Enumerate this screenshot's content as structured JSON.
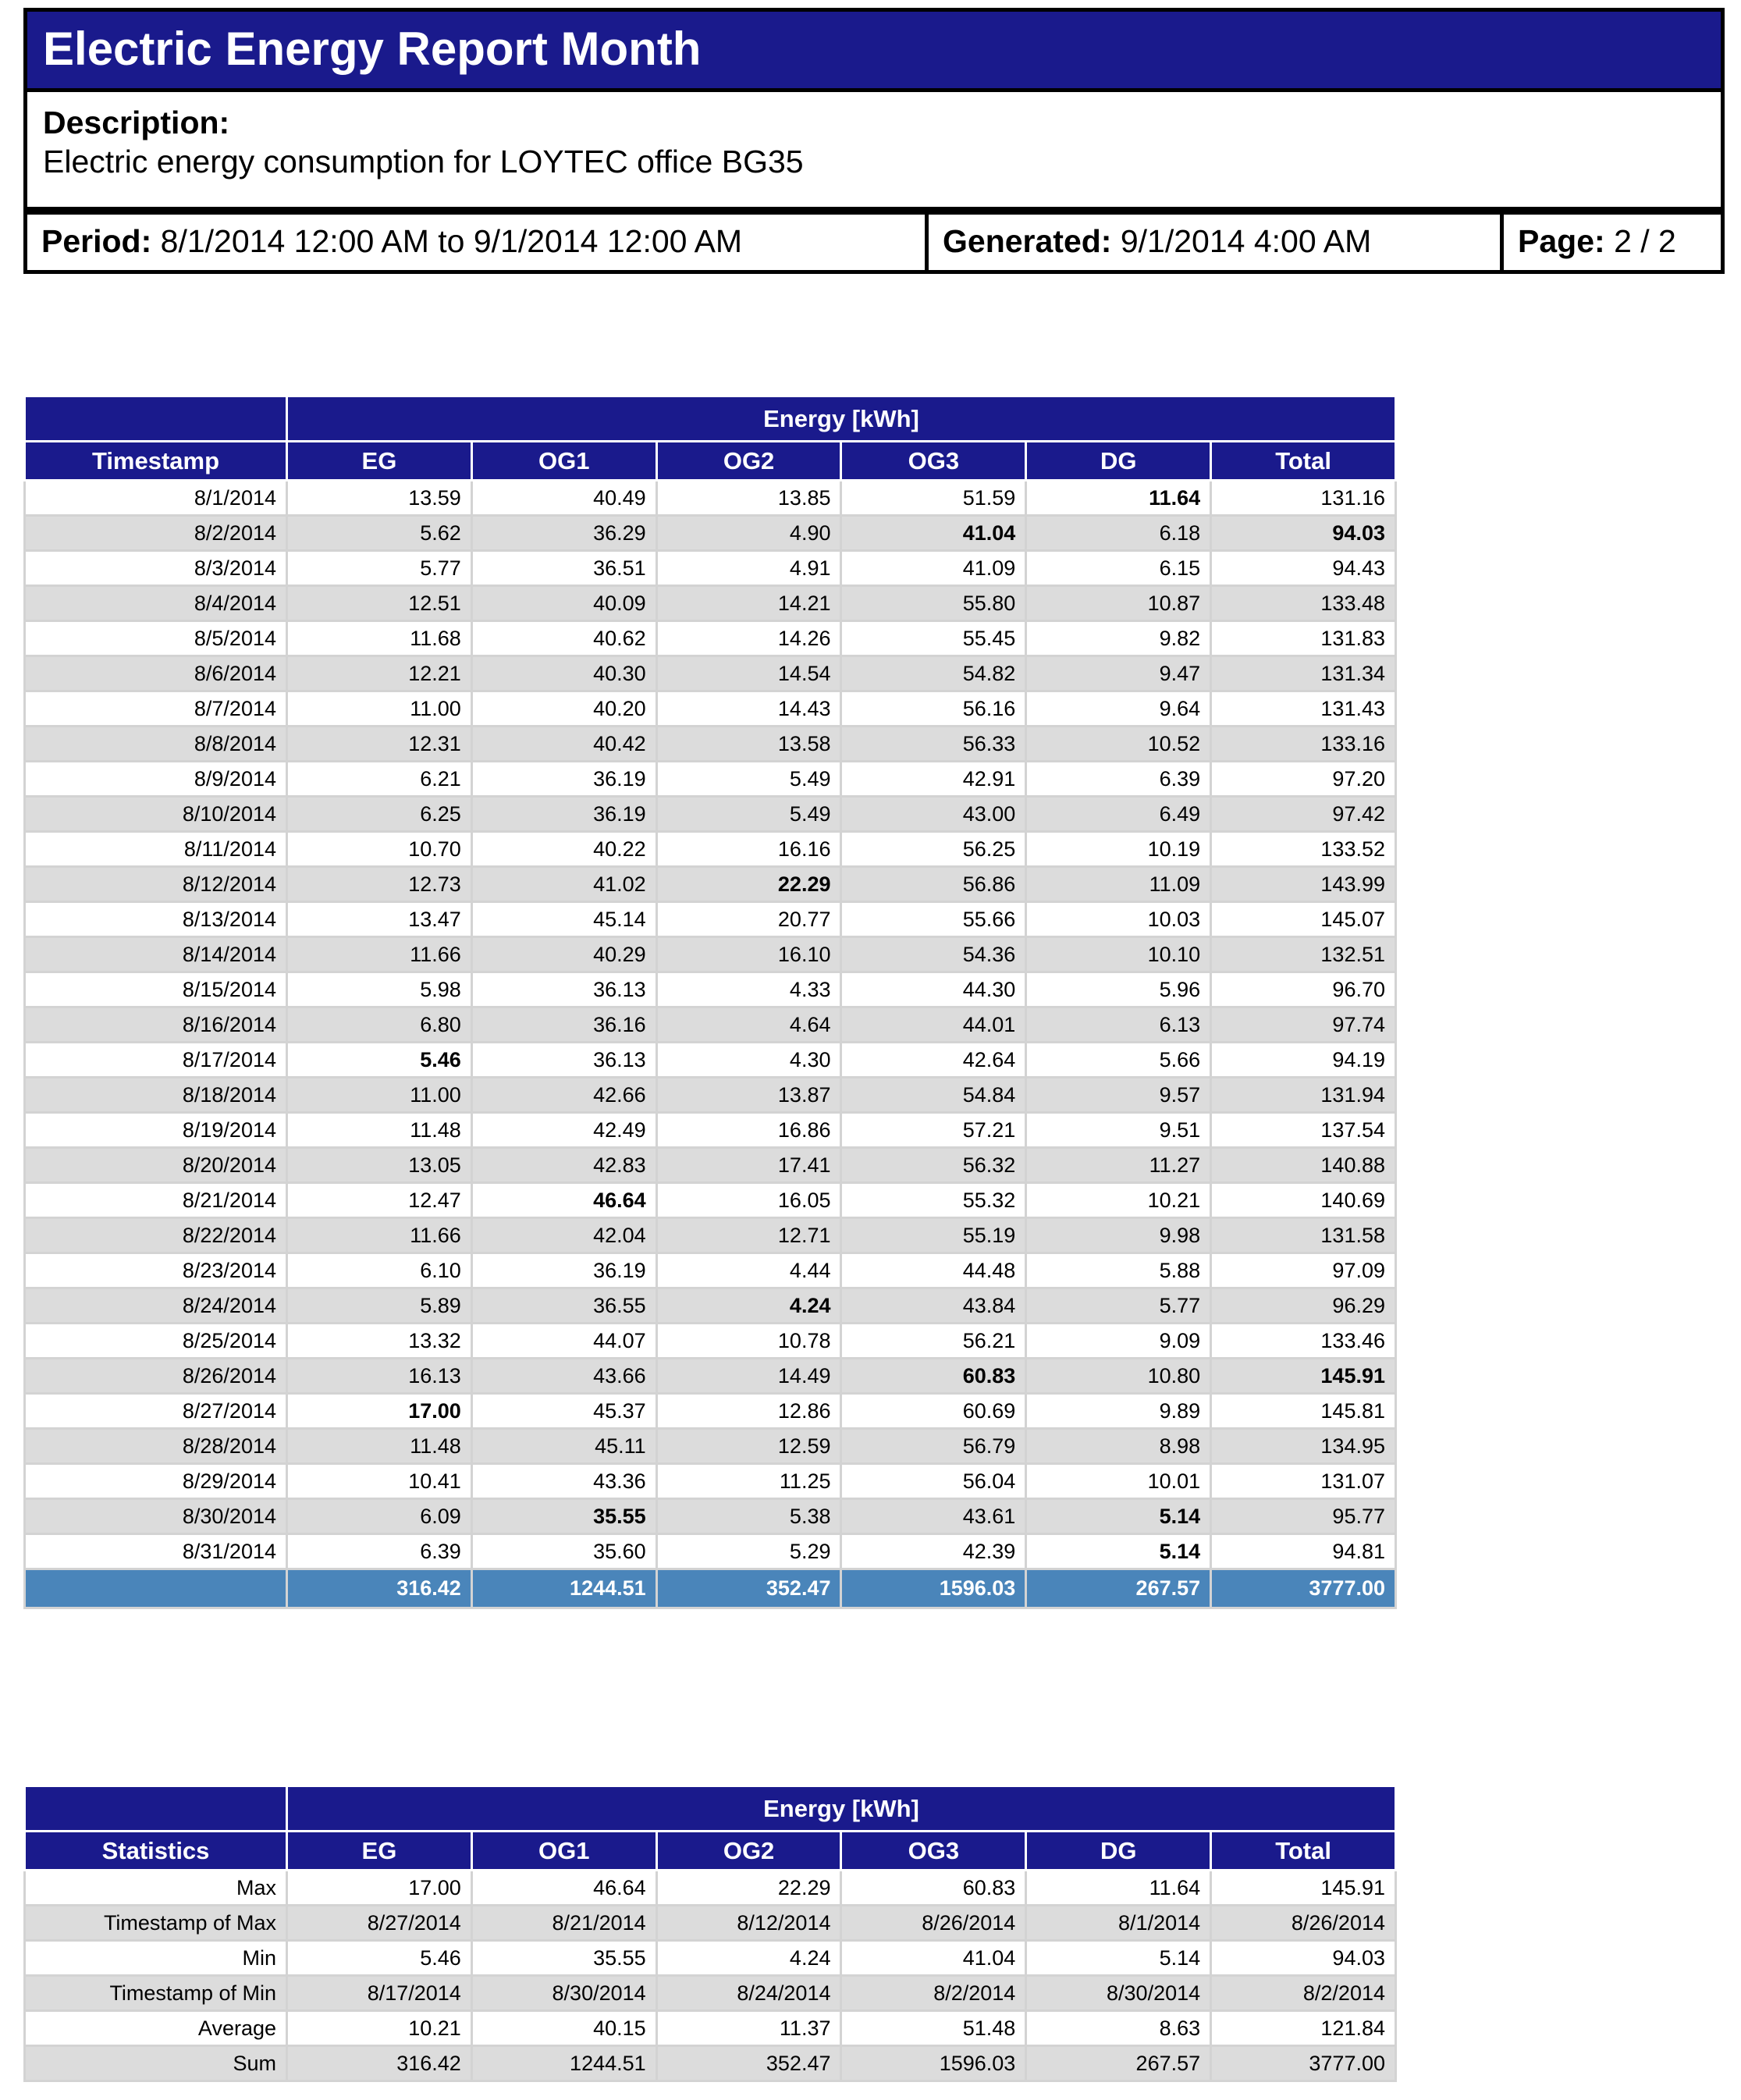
{
  "header": {
    "title": "Electric Energy Report Month",
    "description_label": "Description:",
    "description": "Electric energy consumption for LOYTEC office BG35",
    "period_label": "Period:",
    "period": "8/1/2014 12:00 AM to 9/1/2014 12:00 AM",
    "generated_label": "Generated:",
    "generated": "9/1/2014 4:00 AM",
    "page_label": "Page:",
    "page": "2 / 2"
  },
  "colors": {
    "navy": "#1A1A8C",
    "sum_blue": "#4A85BA",
    "stripe_gray": "#DCDCDC",
    "grid_gray": "#D3D3D3"
  },
  "energy_table": {
    "group_header": "Energy [kWh]",
    "corner_header": "Timestamp",
    "columns": [
      "EG",
      "OG1",
      "OG2",
      "OG3",
      "DG",
      "Total"
    ],
    "rows": [
      [
        "8/1/2014",
        "13.59",
        "40.49",
        "13.85",
        "51.59",
        "11.64",
        "131.16"
      ],
      [
        "8/2/2014",
        "5.62",
        "36.29",
        "4.90",
        "41.04",
        "6.18",
        "94.03"
      ],
      [
        "8/3/2014",
        "5.77",
        "36.51",
        "4.91",
        "41.09",
        "6.15",
        "94.43"
      ],
      [
        "8/4/2014",
        "12.51",
        "40.09",
        "14.21",
        "55.80",
        "10.87",
        "133.48"
      ],
      [
        "8/5/2014",
        "11.68",
        "40.62",
        "14.26",
        "55.45",
        "9.82",
        "131.83"
      ],
      [
        "8/6/2014",
        "12.21",
        "40.30",
        "14.54",
        "54.82",
        "9.47",
        "131.34"
      ],
      [
        "8/7/2014",
        "11.00",
        "40.20",
        "14.43",
        "56.16",
        "9.64",
        "131.43"
      ],
      [
        "8/8/2014",
        "12.31",
        "40.42",
        "13.58",
        "56.33",
        "10.52",
        "133.16"
      ],
      [
        "8/9/2014",
        "6.21",
        "36.19",
        "5.49",
        "42.91",
        "6.39",
        "97.20"
      ],
      [
        "8/10/2014",
        "6.25",
        "36.19",
        "5.49",
        "43.00",
        "6.49",
        "97.42"
      ],
      [
        "8/11/2014",
        "10.70",
        "40.22",
        "16.16",
        "56.25",
        "10.19",
        "133.52"
      ],
      [
        "8/12/2014",
        "12.73",
        "41.02",
        "22.29",
        "56.86",
        "11.09",
        "143.99"
      ],
      [
        "8/13/2014",
        "13.47",
        "45.14",
        "20.77",
        "55.66",
        "10.03",
        "145.07"
      ],
      [
        "8/14/2014",
        "11.66",
        "40.29",
        "16.10",
        "54.36",
        "10.10",
        "132.51"
      ],
      [
        "8/15/2014",
        "5.98",
        "36.13",
        "4.33",
        "44.30",
        "5.96",
        "96.70"
      ],
      [
        "8/16/2014",
        "6.80",
        "36.16",
        "4.64",
        "44.01",
        "6.13",
        "97.74"
      ],
      [
        "8/17/2014",
        "5.46",
        "36.13",
        "4.30",
        "42.64",
        "5.66",
        "94.19"
      ],
      [
        "8/18/2014",
        "11.00",
        "42.66",
        "13.87",
        "54.84",
        "9.57",
        "131.94"
      ],
      [
        "8/19/2014",
        "11.48",
        "42.49",
        "16.86",
        "57.21",
        "9.51",
        "137.54"
      ],
      [
        "8/20/2014",
        "13.05",
        "42.83",
        "17.41",
        "56.32",
        "11.27",
        "140.88"
      ],
      [
        "8/21/2014",
        "12.47",
        "46.64",
        "16.05",
        "55.32",
        "10.21",
        "140.69"
      ],
      [
        "8/22/2014",
        "11.66",
        "42.04",
        "12.71",
        "55.19",
        "9.98",
        "131.58"
      ],
      [
        "8/23/2014",
        "6.10",
        "36.19",
        "4.44",
        "44.48",
        "5.88",
        "97.09"
      ],
      [
        "8/24/2014",
        "5.89",
        "36.55",
        "4.24",
        "43.84",
        "5.77",
        "96.29"
      ],
      [
        "8/25/2014",
        "13.32",
        "44.07",
        "10.78",
        "56.21",
        "9.09",
        "133.46"
      ],
      [
        "8/26/2014",
        "16.13",
        "43.66",
        "14.49",
        "60.83",
        "10.80",
        "145.91"
      ],
      [
        "8/27/2014",
        "17.00",
        "45.37",
        "12.86",
        "60.69",
        "9.89",
        "145.81"
      ],
      [
        "8/28/2014",
        "11.48",
        "45.11",
        "12.59",
        "56.79",
        "8.98",
        "134.95"
      ],
      [
        "8/29/2014",
        "10.41",
        "43.36",
        "11.25",
        "56.04",
        "10.01",
        "131.07"
      ],
      [
        "8/30/2014",
        "6.09",
        "35.55",
        "5.38",
        "43.61",
        "5.14",
        "95.77"
      ],
      [
        "8/31/2014",
        "6.39",
        "35.60",
        "5.29",
        "42.39",
        "5.14",
        "94.81"
      ]
    ],
    "sum_row": [
      "316.42",
      "1244.51",
      "352.47",
      "1596.03",
      "267.57",
      "3777.00"
    ]
  },
  "stats_table": {
    "group_header": "Energy [kWh]",
    "corner_header": "Statistics",
    "columns": [
      "EG",
      "OG1",
      "OG2",
      "OG3",
      "DG",
      "Total"
    ],
    "rows": [
      {
        "label": "Max",
        "values": [
          "17.00",
          "46.64",
          "22.29",
          "60.83",
          "11.64",
          "145.91"
        ]
      },
      {
        "label": "Timestamp of Max",
        "values": [
          "8/27/2014",
          "8/21/2014",
          "8/12/2014",
          "8/26/2014",
          "8/1/2014",
          "8/26/2014"
        ]
      },
      {
        "label": "Min",
        "values": [
          "5.46",
          "35.55",
          "4.24",
          "41.04",
          "5.14",
          "94.03"
        ]
      },
      {
        "label": "Timestamp of Min",
        "values": [
          "8/17/2014",
          "8/30/2014",
          "8/24/2014",
          "8/2/2014",
          "8/30/2014",
          "8/2/2014"
        ]
      },
      {
        "label": "Average",
        "values": [
          "10.21",
          "40.15",
          "11.37",
          "51.48",
          "8.63",
          "121.84"
        ]
      },
      {
        "label": "Sum",
        "values": [
          "316.42",
          "1244.51",
          "352.47",
          "1596.03",
          "267.57",
          "3777.00"
        ]
      }
    ]
  }
}
